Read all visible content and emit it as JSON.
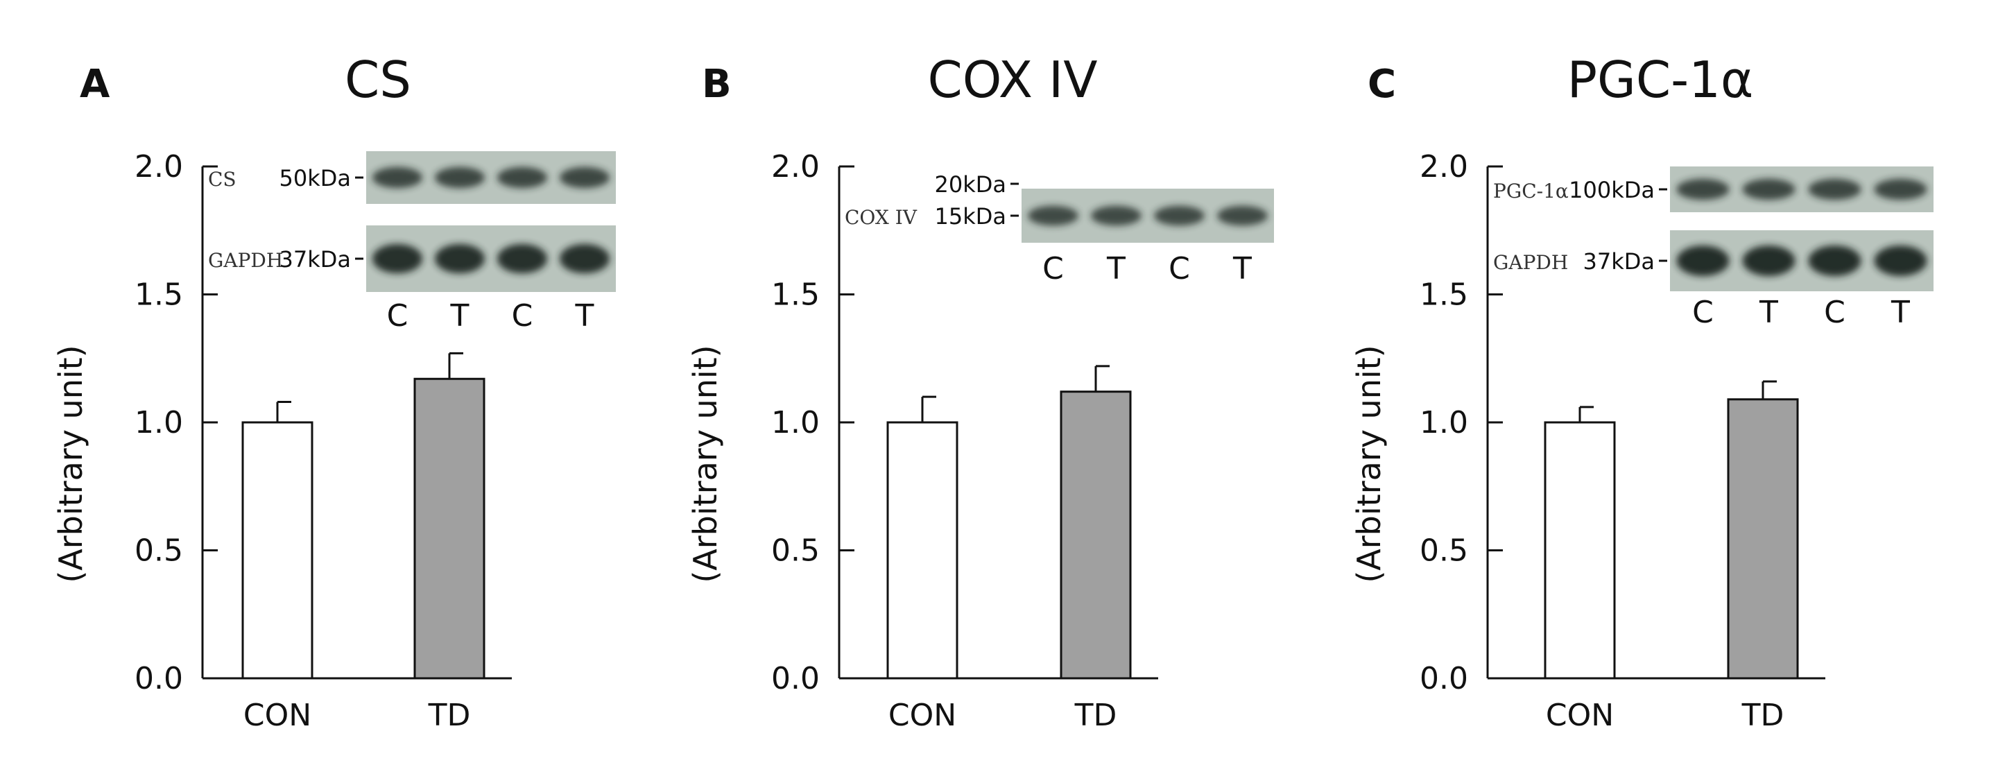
{
  "colors": {
    "con_fill": "#ffffff",
    "td_fill": "#a0a0a0",
    "axis": "#111111",
    "blot_bg": "#b9c4bd",
    "band": "#1f2522"
  },
  "chart_data": [
    {
      "type": "bar",
      "panel": "A",
      "title": "CS",
      "ylabel": "(Arbitrary unit)",
      "xlabel": "",
      "ylim": [
        0,
        2
      ],
      "yticks": [
        0,
        0.5,
        1,
        1.5,
        2
      ],
      "ytick_labels": [
        "0.0",
        "0.5",
        "1.0",
        "1.5",
        "2.0"
      ],
      "categories": [
        "CON",
        "TD"
      ],
      "values": [
        1.0,
        1.17
      ],
      "errors": [
        0.08,
        0.1
      ],
      "grid": false,
      "blot": {
        "lanes": [
          "C",
          "T",
          "C",
          "T"
        ],
        "rows": [
          {
            "protein": "CS",
            "marker": "50kDa",
            "strength": 0.6
          },
          {
            "protein": "GAPDH",
            "marker": "37kDa",
            "strength": 0.95
          }
        ]
      }
    },
    {
      "type": "bar",
      "panel": "B",
      "title": "COX IV",
      "ylabel": "(Arbitrary unit)",
      "xlabel": "",
      "ylim": [
        0,
        2
      ],
      "yticks": [
        0,
        0.5,
        1,
        1.5,
        2
      ],
      "ytick_labels": [
        "0.0",
        "0.5",
        "1.0",
        "1.5",
        "2.0"
      ],
      "categories": [
        "CON",
        "TD"
      ],
      "values": [
        1.0,
        1.12
      ],
      "errors": [
        0.1,
        0.1
      ],
      "grid": false,
      "blot": {
        "lanes": [
          "C",
          "T",
          "C",
          "T"
        ],
        "upper_marker": "20kDa",
        "rows": [
          {
            "protein": "COX IV",
            "marker": "15kDa",
            "strength": 0.55
          }
        ]
      }
    },
    {
      "type": "bar",
      "panel": "C",
      "title": "PGC-1α",
      "ylabel": "(Arbitrary unit)",
      "xlabel": "",
      "ylim": [
        0,
        2
      ],
      "yticks": [
        0,
        0.5,
        1,
        1.5,
        2
      ],
      "ytick_labels": [
        "0.0",
        "0.5",
        "1.0",
        "1.5",
        "2.0"
      ],
      "categories": [
        "CON",
        "TD"
      ],
      "values": [
        1.0,
        1.09
      ],
      "errors": [
        0.06,
        0.07
      ],
      "grid": false,
      "blot": {
        "lanes": [
          "C",
          "T",
          "C",
          "T"
        ],
        "rows": [
          {
            "protein": "PGC-1α",
            "marker": "100kDa",
            "strength": 0.6
          },
          {
            "protein": "GAPDH",
            "marker": "37kDa",
            "strength": 1.0
          }
        ]
      }
    }
  ]
}
